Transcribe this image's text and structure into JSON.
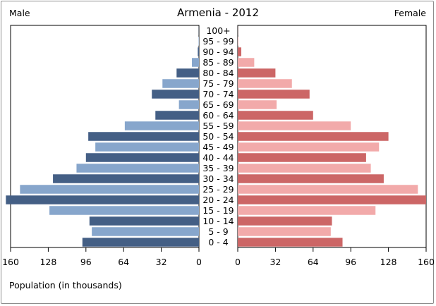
{
  "chart_data": {
    "type": "bar",
    "orientation": "horizontal-population-pyramid",
    "title": "Armenia - 2012",
    "left_label": "Male",
    "right_label": "Female",
    "xlabel": "Population (in thousands)",
    "xlim": [
      0,
      160
    ],
    "x_ticks": [
      160,
      128,
      96,
      64,
      32,
      0
    ],
    "x_ticks_right": [
      0,
      32,
      64,
      96,
      128,
      160
    ],
    "categories": [
      "0 - 4",
      "5 - 9",
      "10 - 14",
      "15 - 19",
      "20 - 24",
      "25 - 29",
      "30 - 34",
      "35 - 39",
      "40 - 44",
      "45 - 49",
      "50 - 54",
      "55 - 59",
      "60 - 64",
      "65 - 69",
      "70 - 74",
      "75 - 79",
      "80 - 84",
      "85 - 89",
      "90 - 94",
      "95 - 99",
      "100+"
    ],
    "series": [
      {
        "name": "Male",
        "values": [
          99,
          91,
          93,
          127,
          164,
          152,
          124,
          104,
          96,
          88,
          94,
          63,
          37,
          17,
          40,
          31,
          19,
          6,
          1,
          0.3,
          0.1
        ],
        "colors": [
          "#445f85",
          "#87a6cc"
        ]
      },
      {
        "name": "Female",
        "values": [
          89,
          79,
          80,
          117,
          160,
          153,
          124,
          113,
          109,
          120,
          128,
          96,
          64,
          33,
          61,
          46,
          32,
          14,
          3,
          0.5,
          0.1
        ],
        "colors": [
          "#cc6666",
          "#f2aaaa"
        ]
      }
    ],
    "grid": false,
    "legend": "none"
  }
}
